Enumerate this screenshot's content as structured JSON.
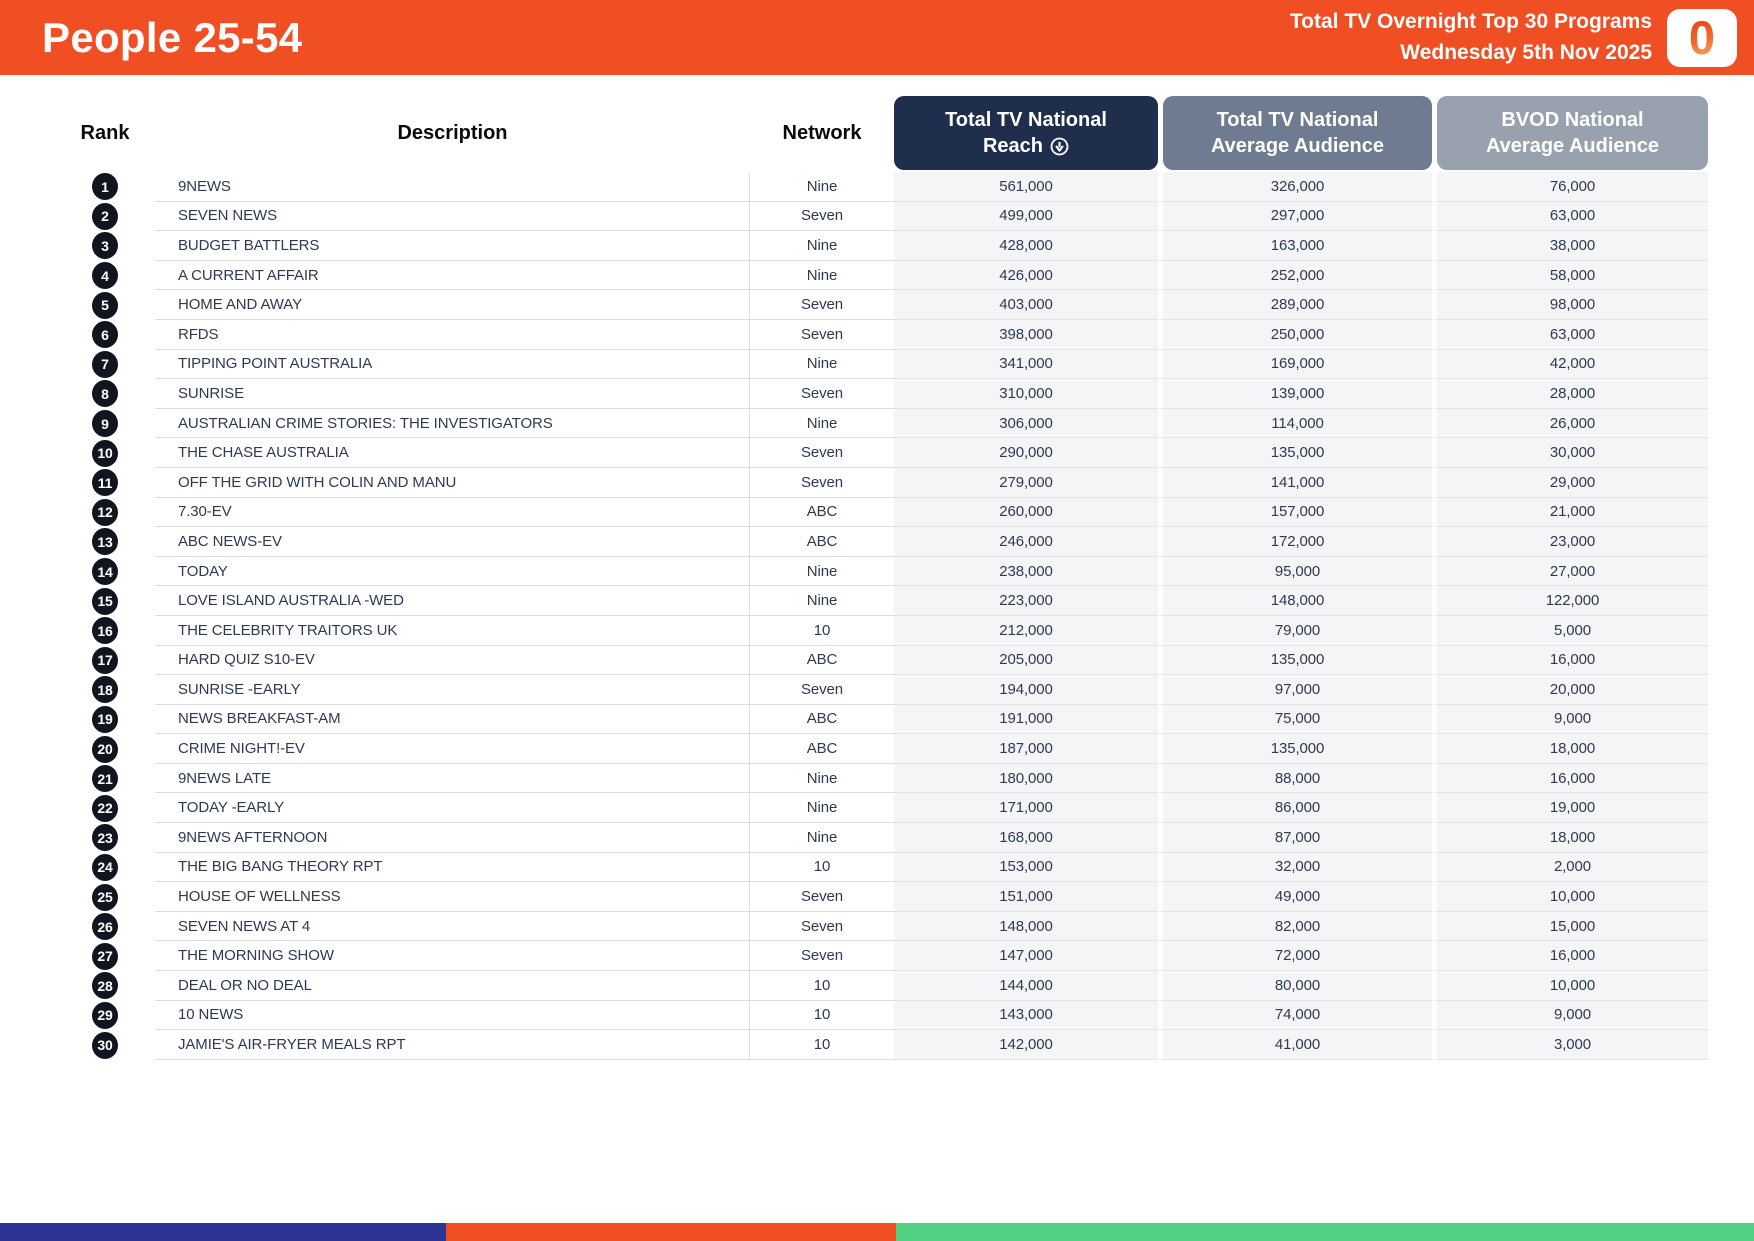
{
  "banner": {
    "title": "People 25-54",
    "subtitle_line1": "Total TV Overnight Top 30 Programs",
    "subtitle_line2": "Wednesday 5th Nov 2025",
    "logo_glyph": "0"
  },
  "icons": {
    "sort": "circle-down-arrow-icon"
  },
  "colors": {
    "banner_orange": "#F04E23",
    "reach_header_navy": "#1F2E4D",
    "avg_header_slate": "#6F7B90",
    "bvod_header_gray": "#99A1AF",
    "row_text": "#2D3A52",
    "rank_badge": "#10151F",
    "value_column_bg": "#F5F5F7",
    "footer_blue": "#2D3494",
    "footer_orange": "#F04E23",
    "footer_green": "#52D084"
  },
  "table": {
    "headers": {
      "rank": "Rank",
      "description": "Description",
      "network": "Network",
      "reach_line1": "Total TV National",
      "reach_line2": "Reach",
      "avg_line1": "Total TV National",
      "avg_line2": "Average Audience",
      "bvod_line1": "BVOD National",
      "bvod_line2": "Average Audience"
    },
    "rows": [
      {
        "rank": "1",
        "description": "9NEWS",
        "network": "Nine",
        "reach": "561,000",
        "avg_audience": "326,000",
        "bvod": "76,000"
      },
      {
        "rank": "2",
        "description": "SEVEN NEWS",
        "network": "Seven",
        "reach": "499,000",
        "avg_audience": "297,000",
        "bvod": "63,000"
      },
      {
        "rank": "3",
        "description": "BUDGET BATTLERS",
        "network": "Nine",
        "reach": "428,000",
        "avg_audience": "163,000",
        "bvod": "38,000"
      },
      {
        "rank": "4",
        "description": "A CURRENT AFFAIR",
        "network": "Nine",
        "reach": "426,000",
        "avg_audience": "252,000",
        "bvod": "58,000"
      },
      {
        "rank": "5",
        "description": "HOME AND AWAY",
        "network": "Seven",
        "reach": "403,000",
        "avg_audience": "289,000",
        "bvod": "98,000"
      },
      {
        "rank": "6",
        "description": "RFDS",
        "network": "Seven",
        "reach": "398,000",
        "avg_audience": "250,000",
        "bvod": "63,000"
      },
      {
        "rank": "7",
        "description": "TIPPING POINT AUSTRALIA",
        "network": "Nine",
        "reach": "341,000",
        "avg_audience": "169,000",
        "bvod": "42,000"
      },
      {
        "rank": "8",
        "description": "SUNRISE",
        "network": "Seven",
        "reach": "310,000",
        "avg_audience": "139,000",
        "bvod": "28,000"
      },
      {
        "rank": "9",
        "description": "AUSTRALIAN CRIME STORIES: THE INVESTIGATORS",
        "network": "Nine",
        "reach": "306,000",
        "avg_audience": "114,000",
        "bvod": "26,000"
      },
      {
        "rank": "10",
        "description": "THE CHASE AUSTRALIA",
        "network": "Seven",
        "reach": "290,000",
        "avg_audience": "135,000",
        "bvod": "30,000"
      },
      {
        "rank": "11",
        "description": "OFF THE GRID WITH COLIN AND MANU",
        "network": "Seven",
        "reach": "279,000",
        "avg_audience": "141,000",
        "bvod": "29,000"
      },
      {
        "rank": "12",
        "description": "7.30-EV",
        "network": "ABC",
        "reach": "260,000",
        "avg_audience": "157,000",
        "bvod": "21,000"
      },
      {
        "rank": "13",
        "description": "ABC NEWS-EV",
        "network": "ABC",
        "reach": "246,000",
        "avg_audience": "172,000",
        "bvod": "23,000"
      },
      {
        "rank": "14",
        "description": "TODAY",
        "network": "Nine",
        "reach": "238,000",
        "avg_audience": "95,000",
        "bvod": "27,000"
      },
      {
        "rank": "15",
        "description": "LOVE ISLAND AUSTRALIA -WED",
        "network": "Nine",
        "reach": "223,000",
        "avg_audience": "148,000",
        "bvod": "122,000"
      },
      {
        "rank": "16",
        "description": "THE CELEBRITY TRAITORS UK",
        "network": "10",
        "reach": "212,000",
        "avg_audience": "79,000",
        "bvod": "5,000"
      },
      {
        "rank": "17",
        "description": "HARD QUIZ S10-EV",
        "network": "ABC",
        "reach": "205,000",
        "avg_audience": "135,000",
        "bvod": "16,000"
      },
      {
        "rank": "18",
        "description": "SUNRISE -EARLY",
        "network": "Seven",
        "reach": "194,000",
        "avg_audience": "97,000",
        "bvod": "20,000"
      },
      {
        "rank": "19",
        "description": "NEWS BREAKFAST-AM",
        "network": "ABC",
        "reach": "191,000",
        "avg_audience": "75,000",
        "bvod": "9,000"
      },
      {
        "rank": "20",
        "description": "CRIME NIGHT!-EV",
        "network": "ABC",
        "reach": "187,000",
        "avg_audience": "135,000",
        "bvod": "18,000"
      },
      {
        "rank": "21",
        "description": "9NEWS LATE",
        "network": "Nine",
        "reach": "180,000",
        "avg_audience": "88,000",
        "bvod": "16,000"
      },
      {
        "rank": "22",
        "description": "TODAY -EARLY",
        "network": "Nine",
        "reach": "171,000",
        "avg_audience": "86,000",
        "bvod": "19,000"
      },
      {
        "rank": "23",
        "description": "9NEWS AFTERNOON",
        "network": "Nine",
        "reach": "168,000",
        "avg_audience": "87,000",
        "bvod": "18,000"
      },
      {
        "rank": "24",
        "description": "THE BIG BANG THEORY RPT",
        "network": "10",
        "reach": "153,000",
        "avg_audience": "32,000",
        "bvod": "2,000"
      },
      {
        "rank": "25",
        "description": "HOUSE OF WELLNESS",
        "network": "Seven",
        "reach": "151,000",
        "avg_audience": "49,000",
        "bvod": "10,000"
      },
      {
        "rank": "26",
        "description": "SEVEN NEWS AT 4",
        "network": "Seven",
        "reach": "148,000",
        "avg_audience": "82,000",
        "bvod": "15,000"
      },
      {
        "rank": "27",
        "description": "THE MORNING SHOW",
        "network": "Seven",
        "reach": "147,000",
        "avg_audience": "72,000",
        "bvod": "16,000"
      },
      {
        "rank": "28",
        "description": "DEAL OR NO DEAL",
        "network": "10",
        "reach": "144,000",
        "avg_audience": "80,000",
        "bvod": "10,000"
      },
      {
        "rank": "29",
        "description": "10 NEWS",
        "network": "10",
        "reach": "143,000",
        "avg_audience": "74,000",
        "bvod": "9,000"
      },
      {
        "rank": "30",
        "description": "JAMIE'S AIR-FRYER MEALS RPT",
        "network": "10",
        "reach": "142,000",
        "avg_audience": "41,000",
        "bvod": "3,000"
      }
    ]
  },
  "footer": {
    "segments": [
      {
        "name": "blue",
        "color": "#2D3494",
        "width_pct": 25.4
      },
      {
        "name": "orange",
        "color": "#F04E23",
        "width_pct": 25.7
      },
      {
        "name": "green",
        "color": "#52D084",
        "width_pct": 48.9
      }
    ]
  }
}
